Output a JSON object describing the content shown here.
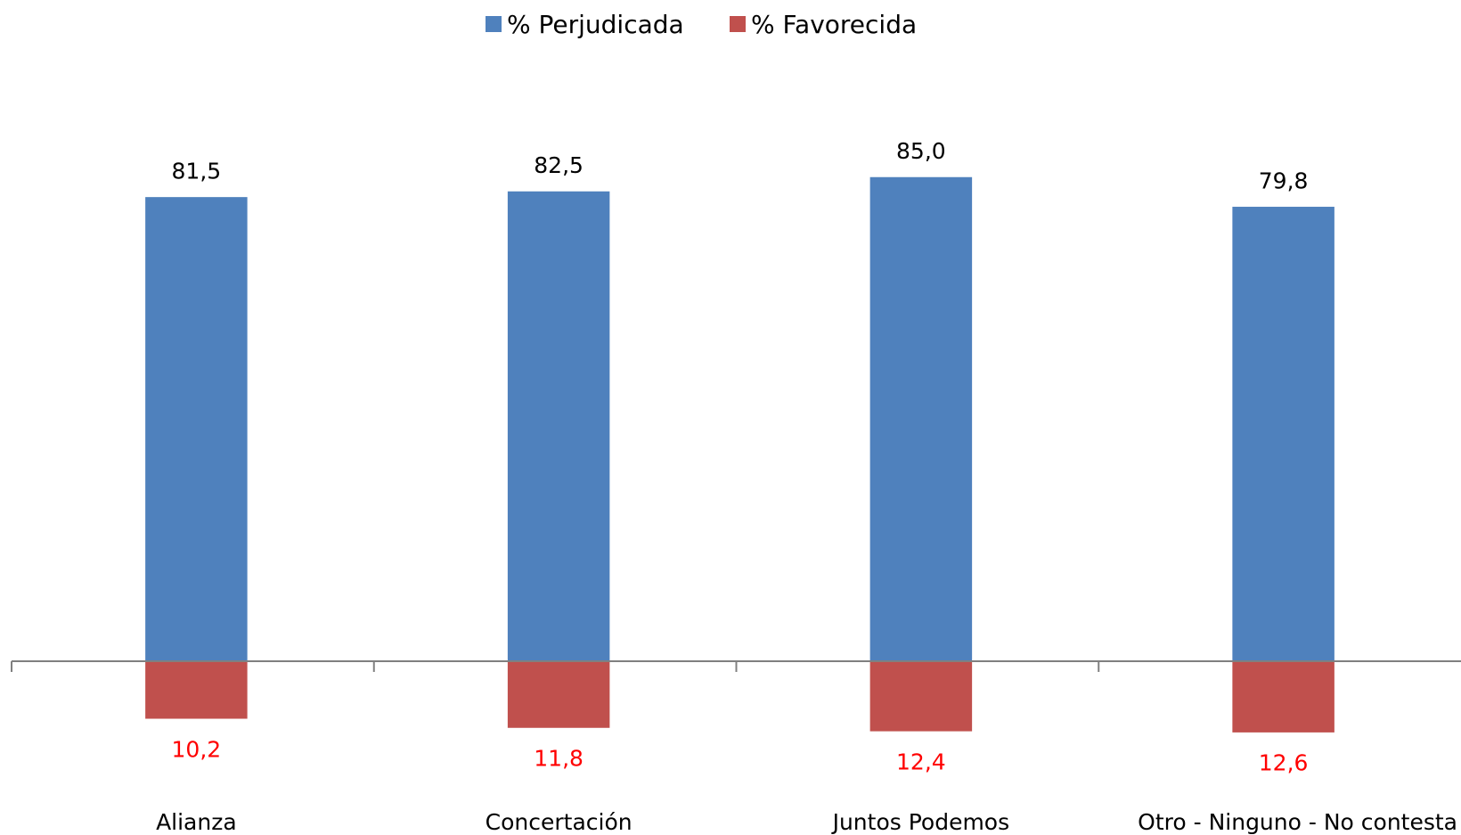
{
  "chart_data": {
    "type": "bar",
    "categories": [
      "Alianza",
      "Concertación",
      "Juntos Podemos",
      "Otro - Ninguno - No contesta"
    ],
    "series": [
      {
        "name": "% Perjudicada",
        "values": [
          81.5,
          82.5,
          85.0,
          79.8
        ],
        "labels": [
          "81,5",
          "82,5",
          "85,0",
          "79,8"
        ],
        "color": "#4F81BD",
        "label_color": "#000000"
      },
      {
        "name": "% Favorecida",
        "values": [
          -10.2,
          -11.8,
          -12.4,
          -12.6
        ],
        "labels": [
          "10,2",
          "11,8",
          "12,4",
          "12,6"
        ],
        "color": "#C0504D",
        "label_color": "#FF0000"
      }
    ],
    "ylim": [
      -20,
      105
    ],
    "grid": false,
    "legend_position": "top-center",
    "axis_color": "#808080"
  }
}
